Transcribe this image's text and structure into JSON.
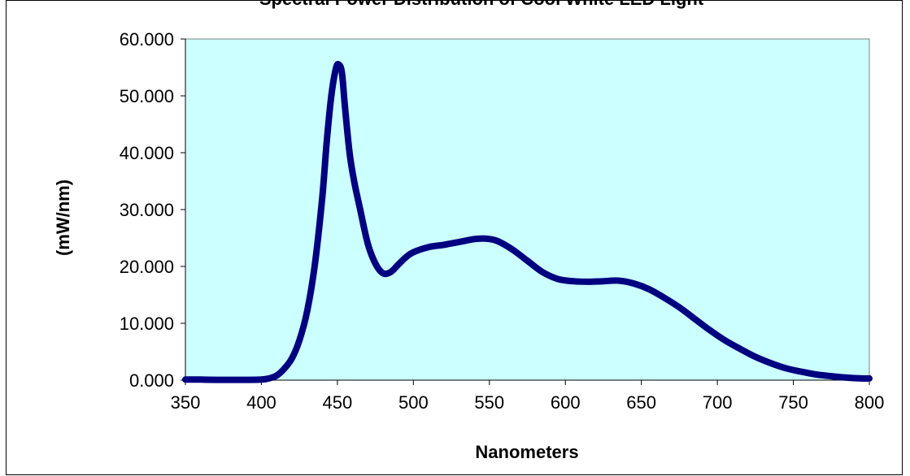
{
  "chart_data": {
    "type": "line",
    "title": "Spectral Power Distribution of Cool White LED Light",
    "xlabel": "Nanometers",
    "ylabel": "(mW/nm)",
    "xlim": [
      350,
      800
    ],
    "ylim": [
      0,
      60
    ],
    "x_ticks": [
      "350",
      "400",
      "450",
      "500",
      "550",
      "600",
      "650",
      "700",
      "750",
      "800"
    ],
    "y_ticks": [
      "0.000",
      "10.000",
      "20.000",
      "30.000",
      "40.000",
      "50.000",
      "60.000"
    ],
    "grid": false,
    "legend": "none",
    "colors": {
      "plot_background": "#ccffff",
      "line": "#000080",
      "axes": "#000000"
    },
    "series": [
      {
        "x": [
          350,
          360,
          370,
          380,
          390,
          400,
          405,
          410,
          415,
          420,
          425,
          430,
          435,
          440,
          443,
          446,
          449,
          451,
          453,
          455,
          458,
          461,
          465,
          470,
          475,
          480,
          485,
          490,
          495,
          500,
          510,
          520,
          530,
          540,
          547,
          555,
          565,
          575,
          585,
          595,
          605,
          615,
          625,
          635,
          645,
          655,
          665,
          675,
          685,
          695,
          705,
          715,
          725,
          735,
          745,
          755,
          765,
          775,
          785,
          795,
          800
        ],
        "y": [
          0.1,
          0.1,
          0.05,
          0.05,
          0.05,
          0.1,
          0.3,
          0.8,
          2.0,
          3.8,
          7.0,
          12.0,
          20.0,
          32.0,
          42.0,
          50.0,
          54.8,
          55.5,
          54.0,
          48.0,
          40.0,
          35.0,
          30.0,
          24.0,
          20.5,
          18.8,
          19.0,
          20.3,
          21.6,
          22.5,
          23.4,
          23.8,
          24.3,
          24.8,
          24.9,
          24.5,
          23.0,
          21.0,
          19.0,
          17.8,
          17.4,
          17.3,
          17.4,
          17.5,
          17.0,
          16.0,
          14.5,
          12.8,
          10.8,
          8.8,
          7.0,
          5.5,
          4.1,
          3.0,
          2.1,
          1.5,
          1.0,
          0.7,
          0.45,
          0.3,
          0.3
        ]
      }
    ]
  }
}
